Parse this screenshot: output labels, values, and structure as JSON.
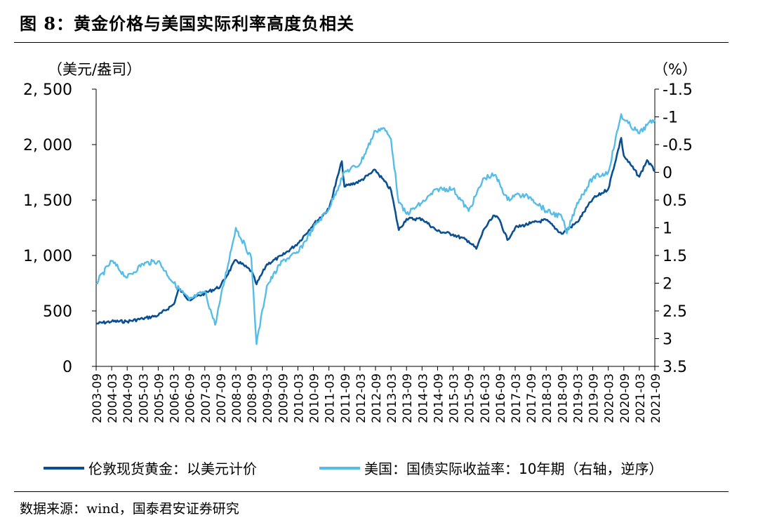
{
  "figure": {
    "title": "图 8：黄金价格与美国实际利率高度负相关",
    "source": "数据来源：wind，国泰君安证券研究"
  },
  "chart_data": {
    "type": "line",
    "left_axis": {
      "unit_label": "（美元/盎司）",
      "ticks": [
        "2, 500",
        "2, 000",
        "1, 500",
        "1, 000",
        "500",
        "0"
      ],
      "range": [
        0,
        2500
      ]
    },
    "right_axis": {
      "unit_label": "（%）",
      "ticks": [
        "-1.5",
        "-1",
        "-0.5",
        "0",
        "0.5",
        "1",
        "1.5",
        "2",
        "2.5",
        "3",
        "3.5"
      ],
      "range": [
        -1.5,
        3.5
      ],
      "inverted": true
    },
    "x_ticks": [
      "2003-09",
      "2004-03",
      "2004-09",
      "2005-03",
      "2005-09",
      "2006-03",
      "2006-09",
      "2007-03",
      "2007-09",
      "2008-03",
      "2008-09",
      "2009-03",
      "2009-09",
      "2010-03",
      "2010-09",
      "2011-03",
      "2011-09",
      "2012-03",
      "2012-09",
      "2013-03",
      "2013-09",
      "2014-03",
      "2014-09",
      "2015-03",
      "2015-09",
      "2016-03",
      "2016-09",
      "2017-03",
      "2017-09",
      "2018-03",
      "2018-09",
      "2019-03",
      "2019-09",
      "2020-03",
      "2020-09",
      "2021-03",
      "2021-09"
    ],
    "grid": false,
    "legend_position": "bottom",
    "series": [
      {
        "name": "伦敦现货黄金：以美元计价",
        "axis": "left",
        "color": "#0b4f93",
        "points": [
          [
            "2003-09",
            385
          ],
          [
            "2004-03",
            405
          ],
          [
            "2004-09",
            405
          ],
          [
            "2005-03",
            430
          ],
          [
            "2005-09",
            460
          ],
          [
            "2006-03",
            560
          ],
          [
            "2006-05",
            700
          ],
          [
            "2006-09",
            600
          ],
          [
            "2007-03",
            660
          ],
          [
            "2007-09",
            720
          ],
          [
            "2008-03",
            960
          ],
          [
            "2008-09",
            860
          ],
          [
            "2008-11",
            740
          ],
          [
            "2009-03",
            920
          ],
          [
            "2009-09",
            1000
          ],
          [
            "2010-03",
            1110
          ],
          [
            "2010-09",
            1280
          ],
          [
            "2011-03",
            1420
          ],
          [
            "2011-08",
            1850
          ],
          [
            "2011-09",
            1620
          ],
          [
            "2012-03",
            1670
          ],
          [
            "2012-09",
            1770
          ],
          [
            "2013-03",
            1590
          ],
          [
            "2013-06",
            1230
          ],
          [
            "2013-09",
            1330
          ],
          [
            "2014-03",
            1330
          ],
          [
            "2014-09",
            1220
          ],
          [
            "2015-03",
            1190
          ],
          [
            "2015-09",
            1130
          ],
          [
            "2015-12",
            1060
          ],
          [
            "2016-03",
            1240
          ],
          [
            "2016-07",
            1360
          ],
          [
            "2016-09",
            1320
          ],
          [
            "2016-12",
            1140
          ],
          [
            "2017-03",
            1250
          ],
          [
            "2017-09",
            1290
          ],
          [
            "2018-03",
            1320
          ],
          [
            "2018-09",
            1195
          ],
          [
            "2019-03",
            1300
          ],
          [
            "2019-09",
            1510
          ],
          [
            "2020-03",
            1600
          ],
          [
            "2020-08",
            2060
          ],
          [
            "2020-09",
            1900
          ],
          [
            "2021-03",
            1710
          ],
          [
            "2021-06",
            1860
          ],
          [
            "2021-09",
            1760
          ]
        ]
      },
      {
        "name": "美国：国债实际收益率：10年期（右轴，逆序）",
        "axis": "right",
        "color": "#56bce8",
        "points": [
          [
            "2003-09",
            2.0
          ],
          [
            "2004-03",
            1.6
          ],
          [
            "2004-09",
            1.9
          ],
          [
            "2005-03",
            1.65
          ],
          [
            "2005-09",
            1.6
          ],
          [
            "2006-03",
            2.0
          ],
          [
            "2006-09",
            2.3
          ],
          [
            "2007-03",
            2.15
          ],
          [
            "2007-07",
            2.75
          ],
          [
            "2007-09",
            2.3
          ],
          [
            "2008-03",
            1.0
          ],
          [
            "2008-09",
            1.55
          ],
          [
            "2008-11",
            3.1
          ],
          [
            "2009-03",
            2.05
          ],
          [
            "2009-09",
            1.6
          ],
          [
            "2010-03",
            1.45
          ],
          [
            "2010-09",
            1.0
          ],
          [
            "2011-03",
            0.65
          ],
          [
            "2011-09",
            0.0
          ],
          [
            "2012-03",
            -0.15
          ],
          [
            "2012-09",
            -0.75
          ],
          [
            "2012-12",
            -0.8
          ],
          [
            "2013-03",
            -0.6
          ],
          [
            "2013-06",
            0.55
          ],
          [
            "2013-09",
            0.75
          ],
          [
            "2014-03",
            0.55
          ],
          [
            "2014-09",
            0.3
          ],
          [
            "2015-03",
            0.3
          ],
          [
            "2015-09",
            0.7
          ],
          [
            "2016-03",
            0.1
          ],
          [
            "2016-07",
            0.05
          ],
          [
            "2016-09",
            0.2
          ],
          [
            "2016-12",
            0.5
          ],
          [
            "2017-03",
            0.4
          ],
          [
            "2017-09",
            0.45
          ],
          [
            "2018-03",
            0.7
          ],
          [
            "2018-09",
            0.8
          ],
          [
            "2018-11",
            1.1
          ],
          [
            "2019-03",
            0.55
          ],
          [
            "2019-09",
            0.1
          ],
          [
            "2020-03",
            0.0
          ],
          [
            "2020-08",
            -1.05
          ],
          [
            "2020-09",
            -0.95
          ],
          [
            "2021-03",
            -0.7
          ],
          [
            "2021-06",
            -0.85
          ],
          [
            "2021-09",
            -0.95
          ]
        ]
      }
    ]
  }
}
